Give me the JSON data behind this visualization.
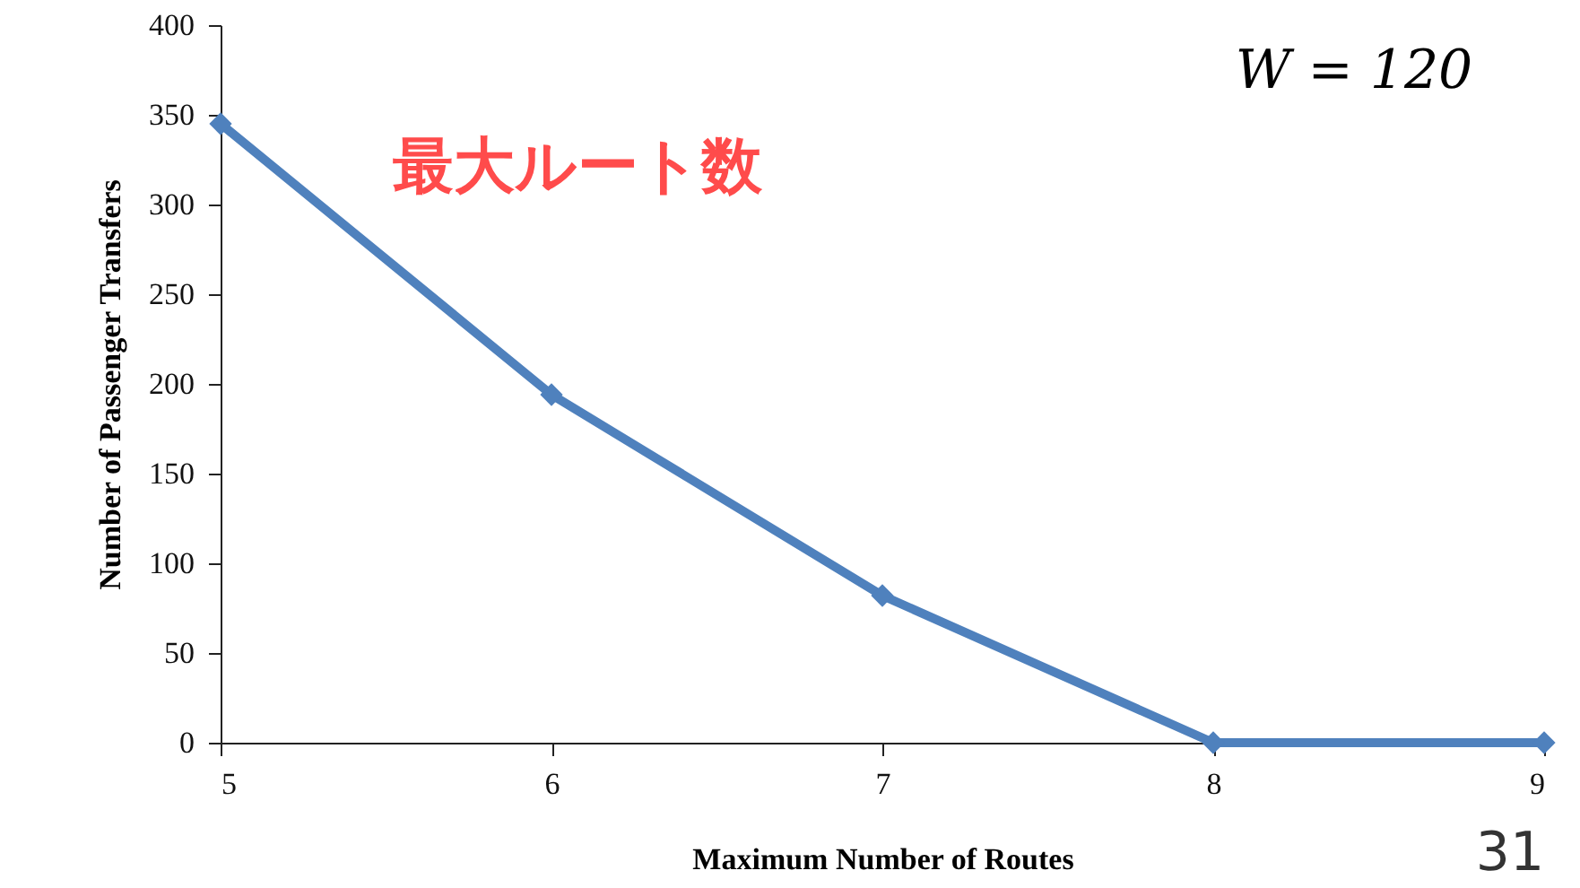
{
  "chart_data": {
    "type": "line",
    "xlabel": "Maximum Number of Routes",
    "ylabel": "Number of Passenger Transfers",
    "categories": [
      "5",
      "6",
      "7",
      "8",
      "9"
    ],
    "series": [
      {
        "color": "#4f81bd",
        "values": [
          345,
          194,
          82,
          0,
          0
        ]
      }
    ],
    "ylim": [
      0,
      400
    ],
    "yticks": [
      0,
      50,
      100,
      150,
      200,
      250,
      300,
      350,
      400
    ],
    "grid": false,
    "marker": "diamond",
    "line_style": "solid",
    "annotations": [
      "W = 120",
      "最大ルート数",
      "31"
    ]
  }
}
